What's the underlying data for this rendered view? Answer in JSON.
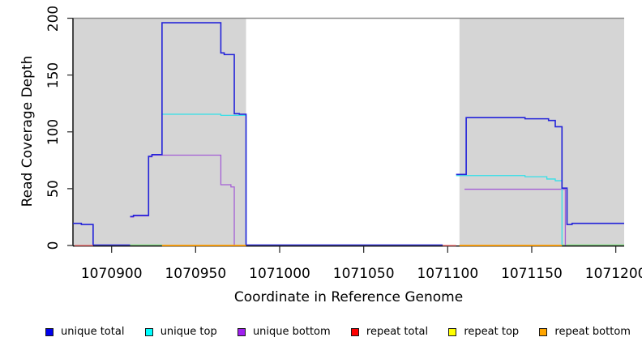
{
  "figure": {
    "x_axis_title": "Coordinate in Reference Genome",
    "y_axis_title": "Read Coverage Depth"
  },
  "chart_data": {
    "type": "line",
    "subtype": "step-coverage-plot",
    "title": "",
    "xlabel": "Coordinate in Reference Genome",
    "ylabel": "Read Coverage Depth",
    "x_domain": [
      1070877,
      1071205
    ],
    "y_domain": [
      0,
      200
    ],
    "x_ticks": [
      1070900,
      1070950,
      1071000,
      1071050,
      1071100,
      1071150,
      1071200
    ],
    "y_ticks": [
      0,
      50,
      100,
      150,
      200
    ],
    "grid": false,
    "legend_position": "bottom",
    "colors": {
      "background": "#ffffff",
      "shaded_band": "#d5d5d5",
      "axis": "#000000",
      "top_border": "#8c8c8c"
    },
    "shaded_regions": [
      {
        "from": 1070877,
        "to": 1070980,
        "meaning": "repeat-region-band"
      },
      {
        "from": 1071107,
        "to": 1071205,
        "meaning": "repeat-region-band"
      }
    ],
    "series": [
      {
        "name": "unique bottom",
        "color": "#a55fd5",
        "stroke_width": 1.3,
        "segments": [
          [
            [
              1070911,
              25
            ],
            [
              1070913,
              26
            ],
            [
              1070922,
              78
            ],
            [
              1070924,
              79.5
            ],
            [
              1070965,
              53.5
            ],
            [
              1070971,
              51.5
            ],
            [
              1070973,
              0
            ]
          ],
          [
            [
              1071110,
              49.5
            ],
            [
              1071170,
              49.5
            ],
            [
              1071170,
              0
            ]
          ]
        ]
      },
      {
        "name": "unique top",
        "color": "#35e0e8",
        "stroke_width": 1.3,
        "segments": [
          [
            [
              1070930,
              115.5
            ],
            [
              1070965,
              114.5
            ],
            [
              1070980,
              0
            ]
          ],
          [
            [
              1071105,
              61.5
            ],
            [
              1071146,
              60.5
            ],
            [
              1071159,
              58.5
            ],
            [
              1071164,
              57
            ],
            [
              1071168,
              0
            ]
          ]
        ]
      },
      {
        "name": "unique total",
        "color": "#2323d9",
        "stroke_width": 1.6,
        "segments": [
          [
            [
              1070877,
              19.5
            ],
            [
              1070882,
              18.5
            ],
            [
              1070889,
              0
            ]
          ],
          [
            [
              1070911,
              25.5
            ],
            [
              1070913,
              26.5
            ],
            [
              1070922,
              78.5
            ],
            [
              1070924,
              80
            ],
            [
              1070930,
              196
            ],
            [
              1070965,
              169.5
            ],
            [
              1070967,
              168
            ],
            [
              1070973,
              116
            ],
            [
              1070976,
              115.5
            ],
            [
              1070980,
              0
            ]
          ],
          [
            [
              1071105,
              62.5
            ],
            [
              1071111,
              112.5
            ],
            [
              1071146,
              111.5
            ],
            [
              1071160,
              110
            ],
            [
              1071164,
              104.5
            ],
            [
              1071168,
              50.5
            ],
            [
              1071171,
              18.5
            ],
            [
              1071174,
              19.5
            ],
            [
              1071205,
              19.5
            ]
          ]
        ]
      },
      {
        "name": "repeat total",
        "color": "#ee6262",
        "stroke_width": 1.3,
        "segments": [
          [
            [
              1070878,
              0
            ],
            [
              1070889,
              0
            ]
          ],
          [
            [
              1071097,
              0
            ],
            [
              1071105,
              0
            ]
          ]
        ]
      },
      {
        "name": "repeat top",
        "color": "#ffff00",
        "stroke_width": 1.3,
        "segments": []
      },
      {
        "name": "repeat bottom",
        "color": "#ff9c00",
        "stroke_width": 1.8,
        "segments": [
          [
            [
              1070930,
              0
            ],
            [
              1070980,
              0
            ]
          ],
          [
            [
              1071107,
              0
            ],
            [
              1071168,
              0
            ]
          ]
        ]
      }
    ],
    "baseline_segments": [
      {
        "from": 1070889,
        "to": 1070911,
        "color": "#4a4ad8"
      },
      {
        "from": 1070911,
        "to": 1070930,
        "color": "#90d890"
      },
      {
        "from": 1070980,
        "to": 1071097,
        "color": "#4a4ad8"
      },
      {
        "from": 1071168,
        "to": 1071205,
        "color": "#90d890"
      }
    ]
  },
  "legend": {
    "items": [
      {
        "label": "unique total",
        "color": "#0000ee"
      },
      {
        "label": "unique top",
        "color": "#00ffff"
      },
      {
        "label": "unique bottom",
        "color": "#a020f0"
      },
      {
        "label": "repeat total",
        "color": "#ff0000"
      },
      {
        "label": "repeat top",
        "color": "#ffff00"
      },
      {
        "label": "repeat bottom",
        "color": "#ffa500"
      }
    ]
  }
}
